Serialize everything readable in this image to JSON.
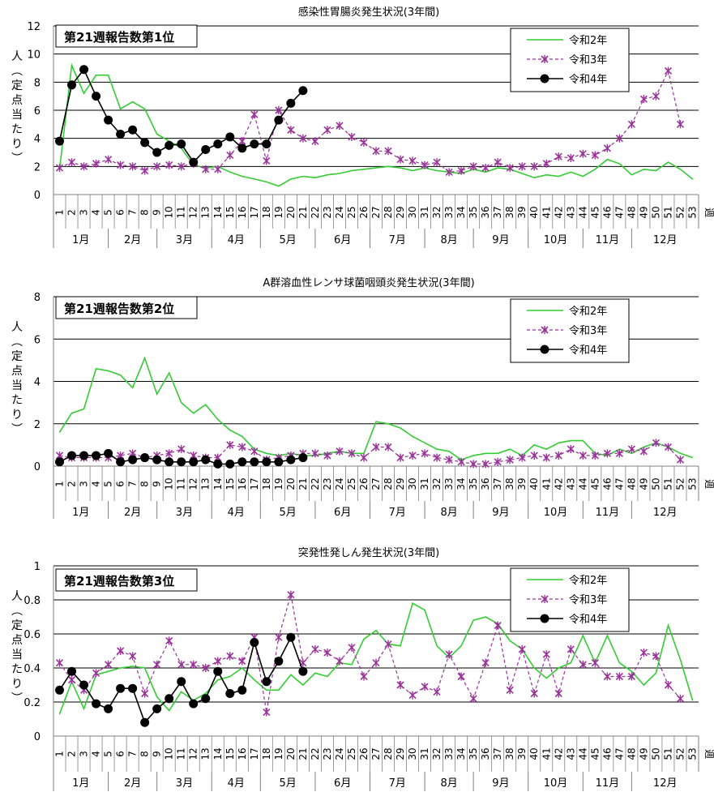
{
  "week_unit": "週",
  "ylabel_chars": [
    "人",
    "︵",
    "定",
    "点",
    "当",
    "た",
    "り",
    "︶"
  ],
  "colors": {
    "r2": "#33cc33",
    "r3": "#993399",
    "r4": "#000000",
    "grid": "#000000",
    "axis": "#808080"
  },
  "chart_data": [
    {
      "type": "line",
      "title": "感染性胃腸炎発生状況(3年間)",
      "rank_label": "第21週報告数第1位",
      "ylim": [
        0,
        12
      ],
      "yticks": [
        "0",
        "2",
        "4",
        "6",
        "8",
        "10",
        "12"
      ],
      "x": [
        1,
        2,
        3,
        4,
        5,
        6,
        7,
        8,
        9,
        10,
        11,
        12,
        13,
        14,
        15,
        16,
        17,
        18,
        19,
        20,
        21,
        22,
        23,
        24,
        25,
        26,
        27,
        28,
        29,
        30,
        31,
        32,
        33,
        34,
        35,
        36,
        37,
        38,
        39,
        40,
        41,
        42,
        43,
        44,
        45,
        46,
        47,
        48,
        49,
        50,
        51,
        52,
        53
      ],
      "months": [
        "1月",
        "2月",
        "3月",
        "4月",
        "5月",
        "6月",
        "7月",
        "8月",
        "9月",
        "10月",
        "11月",
        "12月"
      ],
      "legend": [
        "令和2年",
        "令和3年",
        "令和4年"
      ],
      "series": [
        {
          "name": "令和2年",
          "values": [
            1.8,
            9.2,
            7.2,
            8.5,
            8.5,
            6.1,
            6.6,
            6.1,
            4.3,
            3.8,
            3.3,
            2.1,
            1.9,
            2.0,
            1.6,
            1.3,
            1.1,
            0.9,
            0.6,
            1.1,
            1.3,
            1.2,
            1.4,
            1.5,
            1.7,
            1.8,
            1.9,
            2.0,
            1.9,
            1.7,
            1.9,
            1.7,
            1.6,
            1.5,
            1.8,
            1.6,
            1.9,
            1.8,
            1.5,
            1.2,
            1.4,
            1.3,
            1.6,
            1.3,
            1.8,
            2.5,
            2.2,
            1.4,
            1.8,
            1.7,
            2.3,
            1.8,
            1.1
          ]
        },
        {
          "name": "令和3年",
          "values": [
            1.9,
            2.3,
            2.0,
            2.2,
            2.5,
            2.1,
            2.0,
            1.7,
            2.0,
            2.1,
            2.0,
            2.2,
            1.8,
            1.8,
            2.8,
            3.8,
            5.7,
            2.4,
            6.0,
            4.6,
            4.0,
            3.8,
            4.6,
            4.9,
            4.1,
            3.7,
            3.1,
            3.1,
            2.5,
            2.4,
            2.1,
            2.3,
            1.6,
            1.7,
            2.0,
            1.9,
            2.3,
            1.9,
            2.0,
            2.0,
            2.2,
            2.7,
            2.6,
            2.9,
            2.8,
            3.3,
            4.0,
            5.0,
            6.8,
            7.0,
            8.8,
            5.0,
            null
          ]
        },
        {
          "name": "令和4年",
          "values": [
            3.8,
            7.8,
            8.9,
            7.0,
            5.3,
            4.3,
            4.6,
            3.7,
            3.0,
            3.5,
            3.6,
            2.3,
            3.2,
            3.6,
            4.1,
            3.3,
            3.6,
            3.6,
            5.3,
            6.5,
            7.4,
            null,
            null,
            null,
            null,
            null,
            null,
            null,
            null,
            null,
            null,
            null,
            null,
            null,
            null,
            null,
            null,
            null,
            null,
            null,
            null,
            null,
            null,
            null,
            null,
            null,
            null,
            null,
            null,
            null,
            null,
            null,
            null
          ]
        }
      ]
    },
    {
      "type": "line",
      "title": "A群溶血性レンサ球菌咽頭炎発生状況(3年間)",
      "rank_label": "第21週報告数第2位",
      "ylim": [
        0,
        8
      ],
      "yticks": [
        "0",
        "2",
        "4",
        "6",
        "8"
      ],
      "x": [
        1,
        2,
        3,
        4,
        5,
        6,
        7,
        8,
        9,
        10,
        11,
        12,
        13,
        14,
        15,
        16,
        17,
        18,
        19,
        20,
        21,
        22,
        23,
        24,
        25,
        26,
        27,
        28,
        29,
        30,
        31,
        32,
        33,
        34,
        35,
        36,
        37,
        38,
        39,
        40,
        41,
        42,
        43,
        44,
        45,
        46,
        47,
        48,
        49,
        50,
        51,
        52,
        53
      ],
      "months": [
        "1月",
        "2月",
        "3月",
        "4月",
        "5月",
        "6月",
        "7月",
        "8月",
        "9月",
        "10月",
        "11月",
        "12月"
      ],
      "legend": [
        "令和2年",
        "令和3年",
        "令和4年"
      ],
      "series": [
        {
          "name": "令和2年",
          "values": [
            1.6,
            2.5,
            2.7,
            4.6,
            4.5,
            4.3,
            3.7,
            5.1,
            3.4,
            4.4,
            3.0,
            2.5,
            2.9,
            2.2,
            1.7,
            1.4,
            0.8,
            0.6,
            0.5,
            0.6,
            0.5,
            0.5,
            0.6,
            0.7,
            0.6,
            0.6,
            2.1,
            2.0,
            1.8,
            1.4,
            1.1,
            0.8,
            0.7,
            0.3,
            0.5,
            0.6,
            0.6,
            0.8,
            0.5,
            1.0,
            0.8,
            1.1,
            1.2,
            1.2,
            0.6,
            0.5,
            0.8,
            0.6,
            0.9,
            1.1,
            0.9,
            0.6,
            0.4
          ]
        },
        {
          "name": "令和3年",
          "values": [
            0.5,
            0.4,
            0.4,
            0.4,
            0.4,
            0.5,
            0.6,
            0.4,
            0.5,
            0.6,
            0.8,
            0.5,
            0.4,
            0.4,
            1.0,
            0.9,
            0.7,
            0.3,
            0.4,
            0.5,
            0.6,
            0.6,
            0.5,
            0.7,
            0.6,
            0.4,
            0.9,
            0.9,
            0.4,
            0.5,
            0.6,
            0.4,
            0.3,
            0.2,
            0.1,
            0.1,
            0.2,
            0.3,
            0.4,
            0.5,
            0.4,
            0.5,
            0.8,
            0.5,
            0.5,
            0.6,
            0.6,
            0.8,
            0.7,
            1.1,
            0.9,
            0.3,
            null
          ]
        },
        {
          "name": "令和4年",
          "values": [
            0.2,
            0.5,
            0.5,
            0.5,
            0.6,
            0.2,
            0.3,
            0.4,
            0.3,
            0.2,
            0.2,
            0.2,
            0.3,
            0.1,
            0.1,
            0.2,
            0.2,
            0.2,
            0.2,
            0.3,
            0.4,
            null,
            null,
            null,
            null,
            null,
            null,
            null,
            null,
            null,
            null,
            null,
            null,
            null,
            null,
            null,
            null,
            null,
            null,
            null,
            null,
            null,
            null,
            null,
            null,
            null,
            null,
            null,
            null,
            null,
            null,
            null,
            null
          ]
        }
      ]
    },
    {
      "type": "line",
      "title": "突発性発しん発生状況(3年間)",
      "rank_label": "第21週報告数第3位",
      "ylim": [
        0,
        1
      ],
      "yticks": [
        "0",
        "0.2",
        "0.4",
        "0.6",
        "0.8",
        "1"
      ],
      "x": [
        1,
        2,
        3,
        4,
        5,
        6,
        7,
        8,
        9,
        10,
        11,
        12,
        13,
        14,
        15,
        16,
        17,
        18,
        19,
        20,
        21,
        22,
        23,
        24,
        25,
        26,
        27,
        28,
        29,
        30,
        31,
        32,
        33,
        34,
        35,
        36,
        37,
        38,
        39,
        40,
        41,
        42,
        43,
        44,
        45,
        46,
        47,
        48,
        49,
        50,
        51,
        52,
        53
      ],
      "months": [
        "1月",
        "2月",
        "3月",
        "4月",
        "5月",
        "6月",
        "7月",
        "8月",
        "9月",
        "10月",
        "11月",
        "12月"
      ],
      "legend": [
        "令和2年",
        "令和3年",
        "令和4年"
      ],
      "series": [
        {
          "name": "令和2年",
          "values": [
            0.13,
            0.32,
            0.16,
            0.36,
            0.38,
            0.4,
            0.41,
            0.4,
            0.23,
            0.15,
            0.26,
            0.21,
            0.25,
            0.33,
            0.35,
            0.4,
            0.33,
            0.27,
            0.27,
            0.36,
            0.3,
            0.37,
            0.35,
            0.43,
            0.42,
            0.57,
            0.62,
            0.54,
            0.53,
            0.78,
            0.74,
            0.53,
            0.46,
            0.53,
            0.68,
            0.7,
            0.66,
            0.56,
            0.51,
            0.4,
            0.34,
            0.4,
            0.43,
            0.59,
            0.43,
            0.59,
            0.43,
            0.38,
            0.3,
            0.37,
            0.65,
            0.45,
            0.21
          ]
        },
        {
          "name": "令和3年",
          "values": [
            0.43,
            0.33,
            0.27,
            0.37,
            0.42,
            0.5,
            0.47,
            0.25,
            0.42,
            0.56,
            0.42,
            0.42,
            0.4,
            0.44,
            0.47,
            0.44,
            0.58,
            0.14,
            0.58,
            0.83,
            0.43,
            0.51,
            0.49,
            0.44,
            0.52,
            0.35,
            0.43,
            0.54,
            0.3,
            0.24,
            0.29,
            0.26,
            0.48,
            0.35,
            0.22,
            0.43,
            0.65,
            0.27,
            0.51,
            0.25,
            0.48,
            0.25,
            0.51,
            0.42,
            0.43,
            0.35,
            0.35,
            0.35,
            0.49,
            0.47,
            0.3,
            0.22,
            null
          ]
        },
        {
          "name": "令和4年",
          "values": [
            0.27,
            0.38,
            0.3,
            0.19,
            0.16,
            0.28,
            0.28,
            0.08,
            0.16,
            0.22,
            0.32,
            0.19,
            0.22,
            0.38,
            0.25,
            0.27,
            0.55,
            0.32,
            0.44,
            0.58,
            0.38,
            null,
            null,
            null,
            null,
            null,
            null,
            null,
            null,
            null,
            null,
            null,
            null,
            null,
            null,
            null,
            null,
            null,
            null,
            null,
            null,
            null,
            null,
            null,
            null,
            null,
            null,
            null,
            null,
            null,
            null,
            null,
            null
          ]
        }
      ]
    }
  ]
}
